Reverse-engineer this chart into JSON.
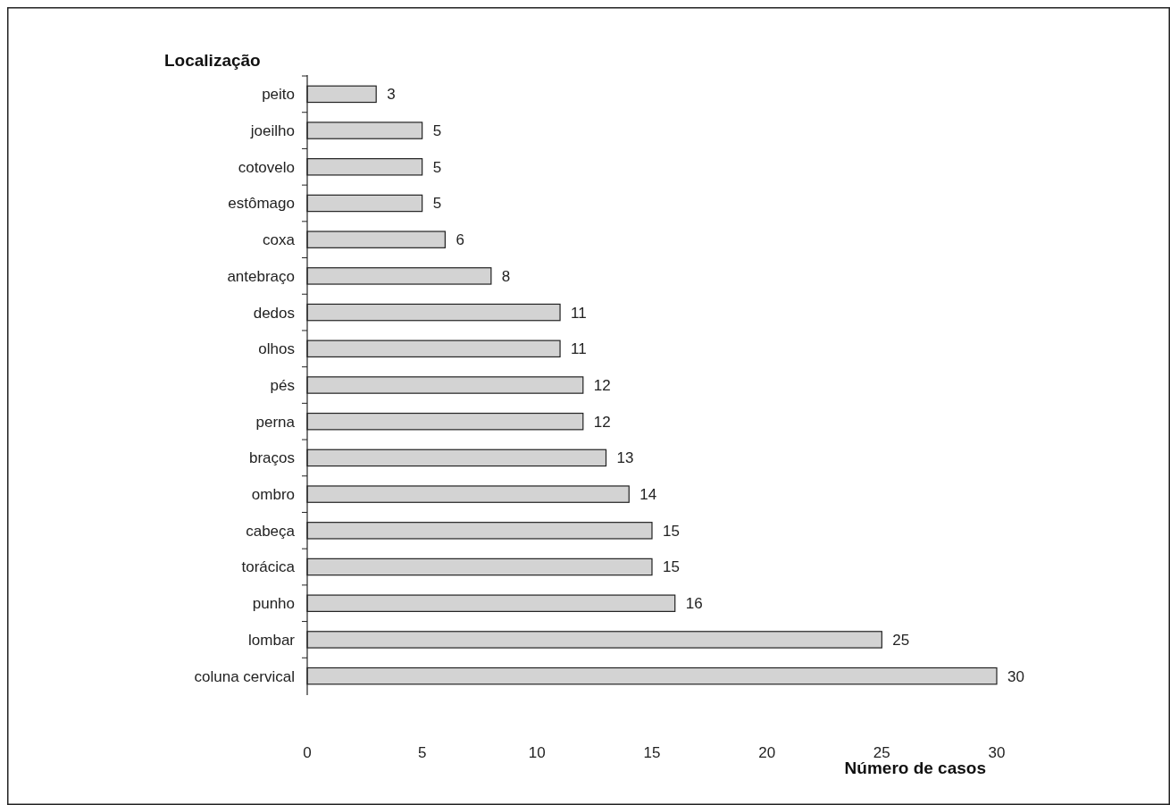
{
  "chart_data": {
    "type": "bar",
    "orientation": "horizontal",
    "ylabel": "Localização",
    "xlabel": "Número de casos",
    "categories": [
      "peito",
      "joeilho",
      "cotovelo",
      "estômago",
      "coxa",
      "antebraço",
      "dedos",
      "olhos",
      "pés",
      "perna",
      "braços",
      "ombro",
      "cabeça",
      "torácica",
      "punho",
      "lombar",
      "coluna cervical"
    ],
    "values": [
      3,
      5,
      5,
      5,
      6,
      8,
      11,
      11,
      12,
      12,
      13,
      14,
      15,
      15,
      16,
      25,
      30
    ],
    "color": "#d3d3d3",
    "xlim": [
      0,
      30
    ],
    "xticks": [
      0,
      5,
      10,
      15,
      20,
      25,
      30
    ],
    "data_labels": true,
    "grid": false
  }
}
